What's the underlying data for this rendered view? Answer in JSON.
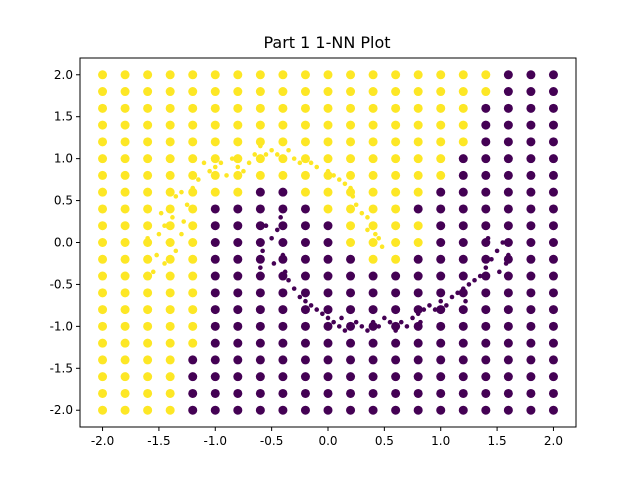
{
  "chart_data": {
    "type": "scatter",
    "title": "Part 1 1-NN Plot",
    "xlabel": "",
    "ylabel": "",
    "xlim": [
      -2.2,
      2.2
    ],
    "ylim": [
      -2.2,
      2.2
    ],
    "x_ticks": [
      "-2.0",
      "-1.5",
      "-1.0",
      "-0.5",
      "0.0",
      "0.5",
      "1.0",
      "1.5",
      "2.0"
    ],
    "y_ticks": [
      "-2.0",
      "-1.5",
      "-1.0",
      "-0.5",
      "0.0",
      "0.5",
      "1.0",
      "1.5",
      "2.0"
    ],
    "grid": false,
    "colors": {
      "class0": "#440154",
      "class1": "#fde725"
    },
    "grid_points": {
      "x_values": [
        -2.0,
        -1.8,
        -1.6,
        -1.4,
        -1.2,
        -1.0,
        -0.8,
        -0.6,
        -0.4,
        -0.2,
        0.0,
        0.2,
        0.4,
        0.6,
        0.8,
        1.0,
        1.2,
        1.4,
        1.6,
        1.8,
        2.0
      ],
      "y_values": [
        2.0,
        1.8,
        1.6,
        1.4,
        1.2,
        1.0,
        0.8,
        0.6,
        0.4,
        0.2,
        0.0,
        -0.2,
        -0.4,
        -0.6,
        -0.8,
        -1.0,
        -1.2,
        -1.4,
        -1.6,
        -1.8,
        -2.0
      ],
      "labels": [
        "111111111111111111000",
        "111111111111111111000",
        "111111111111111110000",
        "111111111111111110000",
        "111111111111111110000",
        "111111111111111100000",
        "111111111111111100000",
        "111111100111111000000",
        "111110000011110000000",
        "111110000001111000000",
        "111110000001111000000",
        "111110000000110000000",
        "111110000000000000000",
        "111110000000000000000",
        "111110000000000000000",
        "111110000000000000000",
        "111110000000000000000",
        "111100000000000000000",
        "111100000000000000000",
        "111100000000000000000",
        "111100000000000000000"
      ]
    },
    "sample_points": {
      "class1": [
        [
          -1.62,
          -0.4
        ],
        [
          -1.55,
          -0.35
        ],
        [
          -1.58,
          -0.2
        ],
        [
          -1.5,
          0.1
        ],
        [
          -1.45,
          0.2
        ],
        [
          -1.48,
          0.35
        ],
        [
          -1.4,
          0.4
        ],
        [
          -1.35,
          0.55
        ],
        [
          -1.3,
          0.6
        ],
        [
          -1.42,
          0.0
        ],
        [
          -1.35,
          -0.1
        ],
        [
          -1.3,
          0.1
        ],
        [
          -1.25,
          0.45
        ],
        [
          -1.2,
          0.65
        ],
        [
          -1.15,
          0.75
        ],
        [
          -1.05,
          0.85
        ],
        [
          -1.0,
          0.9
        ],
        [
          -0.95,
          0.95
        ],
        [
          -0.85,
          1.0
        ],
        [
          -0.75,
          0.85
        ],
        [
          -0.7,
          0.95
        ],
        [
          -0.65,
          1.05
        ],
        [
          -0.6,
          1.15
        ],
        [
          -0.55,
          1.05
        ],
        [
          -0.5,
          1.1
        ],
        [
          -0.45,
          1.05
        ],
        [
          -0.4,
          1.0
        ],
        [
          -0.35,
          1.1
        ],
        [
          -0.3,
          1.0
        ],
        [
          -0.25,
          0.95
        ],
        [
          -0.2,
          1.0
        ],
        [
          -0.15,
          0.95
        ],
        [
          -0.1,
          0.9
        ],
        [
          0.0,
          0.85
        ],
        [
          0.05,
          0.8
        ],
        [
          0.1,
          0.75
        ],
        [
          0.2,
          0.65
        ],
        [
          0.22,
          0.55
        ],
        [
          0.25,
          0.45
        ],
        [
          0.3,
          0.35
        ],
        [
          0.35,
          0.3
        ],
        [
          0.4,
          0.2
        ],
        [
          0.42,
          0.1
        ],
        [
          0.45,
          0.05
        ],
        [
          0.48,
          -0.05
        ],
        [
          -1.6,
          0.05
        ],
        [
          -1.52,
          -0.15
        ],
        [
          -1.45,
          -0.25
        ],
        [
          -1.38,
          0.3
        ],
        [
          -1.28,
          0.25
        ],
        [
          -0.9,
          0.8
        ],
        [
          -0.8,
          0.9
        ],
        [
          0.15,
          0.7
        ],
        [
          0.35,
          0.15
        ],
        [
          -1.1,
          0.95
        ]
      ],
      "class0": [
        [
          -0.58,
          -0.1
        ],
        [
          -0.5,
          0.05
        ],
        [
          -0.45,
          0.15
        ],
        [
          -0.42,
          0.3
        ],
        [
          -0.4,
          -0.15
        ],
        [
          -0.38,
          -0.35
        ],
        [
          -0.35,
          -0.45
        ],
        [
          -0.3,
          -0.55
        ],
        [
          -0.25,
          -0.65
        ],
        [
          -0.2,
          -0.7
        ],
        [
          -0.15,
          -0.75
        ],
        [
          -0.1,
          -0.8
        ],
        [
          -0.05,
          -0.85
        ],
        [
          0.0,
          -0.9
        ],
        [
          0.05,
          -0.95
        ],
        [
          0.1,
          -1.0
        ],
        [
          0.15,
          -1.05
        ],
        [
          0.2,
          -1.0
        ],
        [
          0.25,
          -0.95
        ],
        [
          0.3,
          -1.0
        ],
        [
          0.35,
          -1.05
        ],
        [
          0.4,
          -0.95
        ],
        [
          0.45,
          -1.0
        ],
        [
          0.5,
          -0.9
        ],
        [
          0.55,
          -0.95
        ],
        [
          0.6,
          -1.05
        ],
        [
          0.65,
          -0.95
        ],
        [
          0.7,
          -1.0
        ],
        [
          0.75,
          -0.9
        ],
        [
          0.8,
          -0.85
        ],
        [
          0.85,
          -0.8
        ],
        [
          0.9,
          -0.75
        ],
        [
          0.95,
          -0.8
        ],
        [
          1.0,
          -0.7
        ],
        [
          1.05,
          -0.75
        ],
        [
          1.1,
          -0.65
        ],
        [
          1.15,
          -0.6
        ],
        [
          1.2,
          -0.55
        ],
        [
          1.25,
          -0.5
        ],
        [
          1.3,
          -0.45
        ],
        [
          1.35,
          -0.4
        ],
        [
          1.4,
          -0.3
        ],
        [
          1.45,
          -0.2
        ],
        [
          1.5,
          -0.1
        ],
        [
          1.55,
          0.0
        ],
        [
          1.6,
          -0.15
        ],
        [
          1.58,
          -0.25
        ],
        [
          1.52,
          -0.35
        ],
        [
          -0.55,
          0.2
        ],
        [
          -0.48,
          -0.25
        ],
        [
          -0.6,
          -0.3
        ],
        [
          0.12,
          -0.9
        ],
        [
          0.82,
          -0.95
        ],
        [
          1.22,
          -0.7
        ],
        [
          1.42,
          0.05
        ]
      ]
    }
  }
}
